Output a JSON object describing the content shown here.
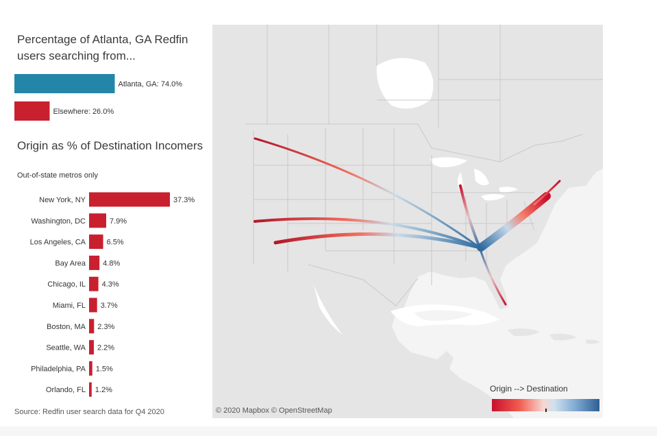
{
  "title_share": "Percentage of Atlanta, GA Redfin users searching from...",
  "title_origin": "Origin as % of Destination Incomers",
  "subtitle_origin": "Out-of-state metros only",
  "source": "Source: Redfin user search data for Q4 2020",
  "map_attribution": "© 2020 Mapbox © OpenStreetMap",
  "legend_title": "Origin --> Destination",
  "colors": {
    "local": "#2386a8",
    "elsewhere": "#c8202f",
    "metro_bar": "#c8202f",
    "land": "#e8e8e8",
    "water": "#ffffff",
    "border": "#c4c4c4",
    "origin": "#c8102e",
    "destination": "#2c5f93"
  },
  "chart_data": [
    {
      "type": "bar",
      "orientation": "horizontal",
      "categories": [
        "Atlanta, GA",
        "Elsewhere"
      ],
      "values": [
        74.0,
        26.0
      ],
      "labels": [
        "Atlanta, GA: 74.0%",
        "Elsewhere: 26.0%"
      ],
      "unit": "%"
    },
    {
      "type": "bar",
      "orientation": "horizontal",
      "categories": [
        "New York, NY",
        "Washington, DC",
        "Los Angeles, CA",
        "Bay Area",
        "Chicago, IL",
        "Miami, FL",
        "Boston, MA",
        "Seattle, WA",
        "Philadelphia, PA",
        "Orlando, FL"
      ],
      "values": [
        37.3,
        7.9,
        6.5,
        4.8,
        4.3,
        3.7,
        2.3,
        2.2,
        1.5,
        1.2
      ],
      "labels": [
        "37.3%",
        "7.9%",
        "6.5%",
        "4.8%",
        "4.3%",
        "3.7%",
        "2.3%",
        "2.2%",
        "1.5%",
        "1.2%"
      ],
      "unit": "%"
    }
  ]
}
